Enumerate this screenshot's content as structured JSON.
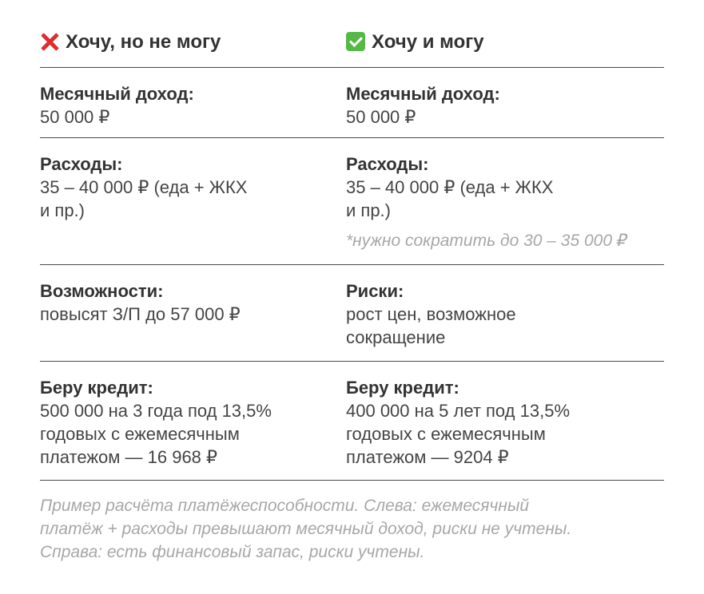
{
  "left": {
    "title": "Хочу, но не могу",
    "title_icon": "cross-mark-icon",
    "income_label": "Месячный доход:",
    "income_value": "50 000 ₽",
    "expenses_label": "Расходы:",
    "expenses_value": "35 – 40 000 ₽ (еда + ЖКХ\nи пр.)",
    "opps_label": "Возможности:",
    "opps_value": "повысят З/П до 57 000 ₽",
    "credit_label": "Беру кредит:",
    "credit_value": "500 000 на 3 года под 13,5%\nгодовых с ежемесячным\nплатежом — 16 968 ₽"
  },
  "right": {
    "title": "Хочу и могу",
    "title_icon": "check-mark-icon",
    "income_label": "Месячный доход:",
    "income_value": "50 000 ₽",
    "expenses_label": "Расходы:",
    "expenses_value": "35 – 40 000 ₽ (еда + ЖКХ\nи пр.)",
    "expenses_note": "*нужно сократить до 30 – 35 000 ₽",
    "risks_label": "Риски:",
    "risks_value": "рост цен, возможное\nсокращение",
    "credit_label": "Беру кредит:",
    "credit_value": "400 000 на 5 лет под 13,5%\nгодовых с ежемесячным\nплатежом — 9204 ₽"
  },
  "caption": "Пример расчёта платёжеспособности. Слева: ежемесячный\nплатёж + расходы превышают месячный доход, риски не учтены.\nСправа: есть финансовый запас, риски учтены.",
  "colors": {
    "cross": "#dd2e2e",
    "check": "#56b946",
    "muted": "#a7a7a7"
  }
}
